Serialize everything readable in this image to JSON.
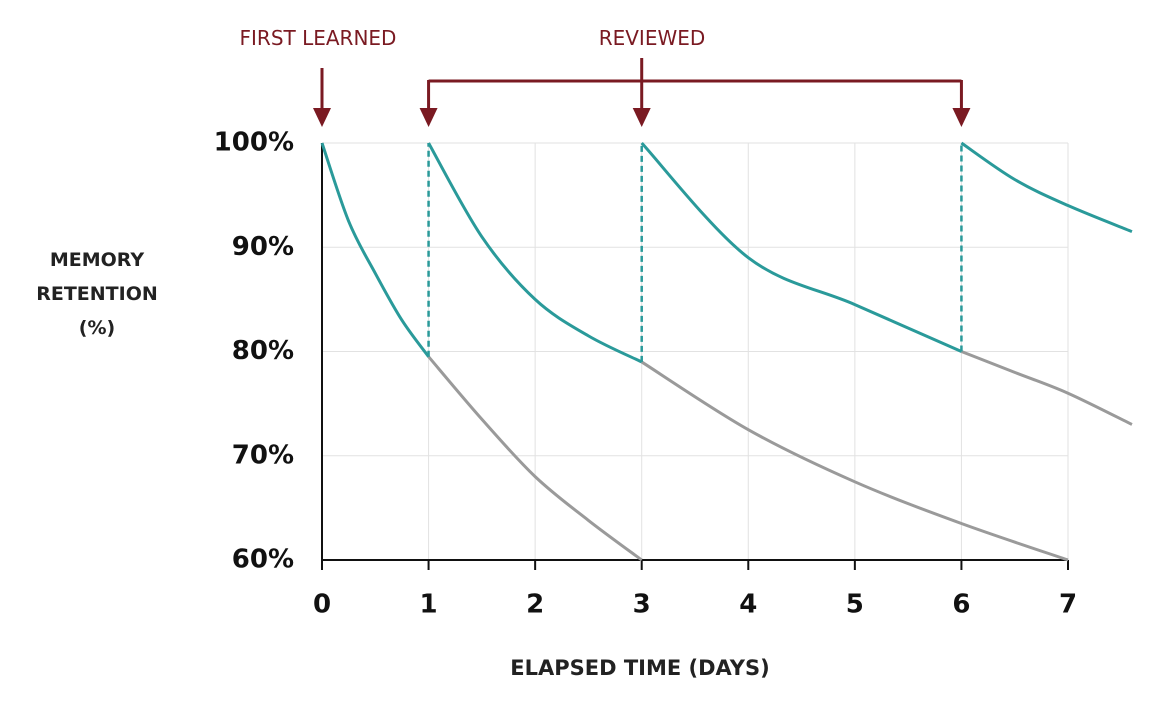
{
  "chart_data": {
    "type": "line",
    "y_label": [
      "MEMORY",
      "RETENTION",
      "(%)"
    ],
    "x_label": "ELAPSED TIME (DAYS)",
    "annotations": {
      "first": "FIRST LEARNED",
      "review": "REVIEWED",
      "color": "#7a1a22"
    },
    "xlim": [
      0,
      7
    ],
    "xticks": [
      0,
      1,
      2,
      3,
      4,
      5,
      6,
      7
    ],
    "ylim": [
      60,
      100
    ],
    "yticks": [
      {
        "value": 60,
        "label": "60%"
      },
      {
        "value": 70,
        "label": "70%"
      },
      {
        "value": 80,
        "label": "80%"
      },
      {
        "value": 90,
        "label": "90%"
      },
      {
        "value": 100,
        "label": "100%"
      }
    ],
    "grid": true,
    "series": [
      {
        "color": "#9a9a9a",
        "x": [
          1,
          1.5,
          2,
          2.5,
          3
        ],
        "values": [
          79.5,
          73.5,
          68,
          63.8,
          60
        ]
      },
      {
        "color": "#9a9a9a",
        "x": [
          3,
          4,
          5,
          6,
          7
        ],
        "values": [
          79,
          72.5,
          67.5,
          63.5,
          60
        ]
      },
      {
        "color": "#9a9a9a",
        "x": [
          6,
          6.5,
          7,
          7.6
        ],
        "values": [
          80,
          78,
          76,
          73
        ]
      },
      {
        "color": "#2a9a9a",
        "x": [
          0,
          0.25,
          0.5,
          0.75,
          1
        ],
        "values": [
          100,
          92.5,
          87.5,
          83,
          79.5
        ]
      },
      {
        "color": "#2a9a9a",
        "x": [
          1,
          1.5,
          2,
          2.5,
          3
        ],
        "values": [
          100,
          91,
          85,
          81.5,
          79
        ]
      },
      {
        "color": "#2a9a9a",
        "x": [
          3,
          4,
          5,
          6
        ],
        "values": [
          100,
          89,
          84.5,
          80
        ]
      },
      {
        "color": "#2a9a9a",
        "x": [
          6,
          6.5,
          7,
          7.6
        ],
        "values": [
          100,
          96.5,
          94,
          91.5
        ]
      }
    ]
  }
}
